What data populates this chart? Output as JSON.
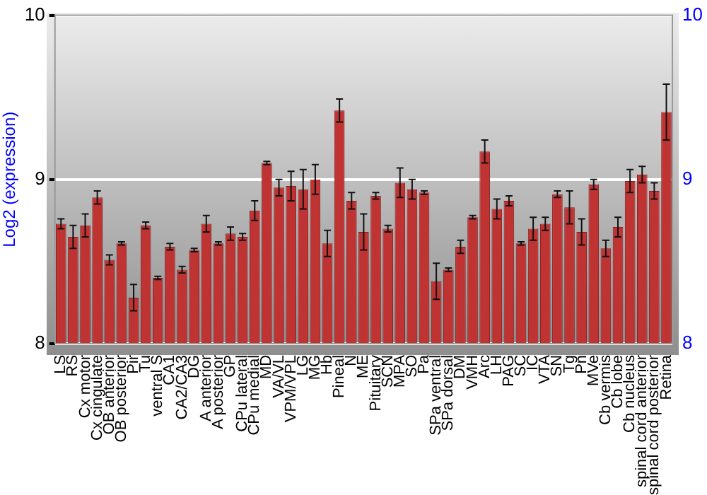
{
  "chart_data": {
    "type": "bar",
    "ylabel": "Log2 (expression)",
    "categories": [
      "LS",
      "RS",
      "Cx motor",
      "Cx cingulate",
      "OB anterior",
      "OB posterior",
      "Pir",
      "Tu",
      "ventral S",
      "CA1",
      "CA2/CA3",
      "DG",
      "A anterior",
      "A posterior",
      "GP",
      "CPu lateral",
      "CPu medial",
      "MD",
      "VA/VL",
      "VPM/VPL",
      "LG",
      "MG",
      "Hb",
      "Pineal",
      "N",
      "ME",
      "Pituitary",
      "SCN",
      "MPA",
      "SO",
      "Pa",
      "SPa ventral",
      "SPa dorsal",
      "DM",
      "VMH",
      "Arc",
      "LH",
      "PAG",
      "SC",
      "IC",
      "VTA",
      "SN",
      "Tg",
      "Pn",
      "MVe",
      "Cb vermis",
      "Cb lobe",
      "Cb nucleus",
      "spinal cord anterior",
      "spinal cord posterior",
      "Retina"
    ],
    "values": [
      8.73,
      8.65,
      8.72,
      8.89,
      8.51,
      8.61,
      8.28,
      8.72,
      8.4,
      8.59,
      8.45,
      8.57,
      8.73,
      8.61,
      8.67,
      8.65,
      8.81,
      9.1,
      8.95,
      8.96,
      8.94,
      9.0,
      8.61,
      9.42,
      8.87,
      8.68,
      8.9,
      8.7,
      8.98,
      8.94,
      8.92,
      8.38,
      8.45,
      8.59,
      8.77,
      9.17,
      8.82,
      8.87,
      8.61,
      8.7,
      8.73,
      8.91,
      8.83,
      8.68,
      8.97,
      8.58,
      8.71,
      8.99,
      9.03,
      8.93,
      9.41
    ],
    "errors": [
      0.03,
      0.07,
      0.07,
      0.04,
      0.03,
      0.01,
      0.08,
      0.02,
      0.01,
      0.02,
      0.02,
      0.01,
      0.05,
      0.01,
      0.04,
      0.02,
      0.06,
      0.01,
      0.05,
      0.09,
      0.12,
      0.09,
      0.08,
      0.07,
      0.05,
      0.11,
      0.02,
      0.02,
      0.09,
      0.06,
      0.01,
      0.11,
      0.01,
      0.04,
      0.01,
      0.07,
      0.06,
      0.03,
      0.01,
      0.07,
      0.04,
      0.02,
      0.1,
      0.08,
      0.03,
      0.05,
      0.06,
      0.07,
      0.05,
      0.05,
      0.17
    ],
    "color": "#bf3333",
    "ylim": [
      8,
      10
    ],
    "yticks": [
      8,
      9,
      10
    ],
    "y2lim": [
      8,
      10
    ],
    "y2ticks": [
      8,
      9,
      10
    ],
    "grid": "y",
    "legend": false
  }
}
